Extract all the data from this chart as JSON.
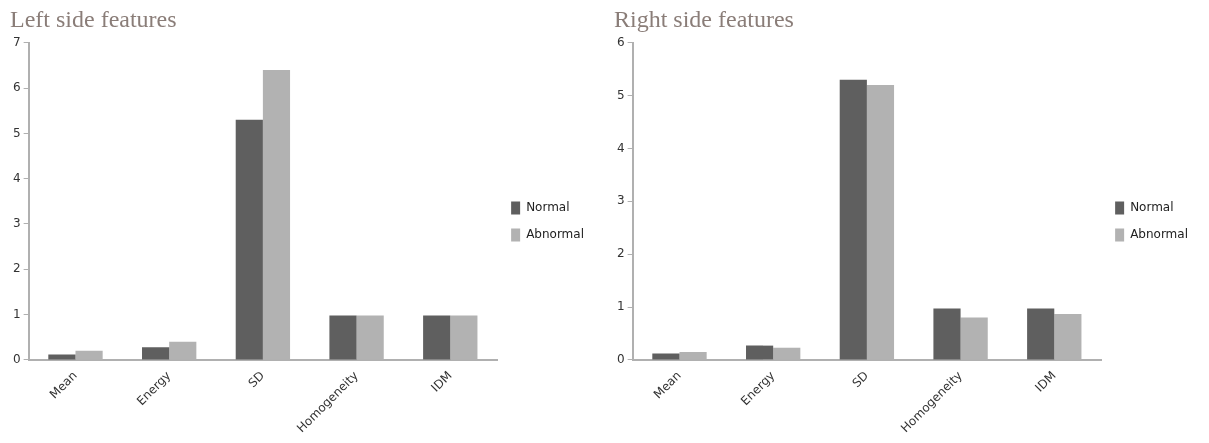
{
  "chart_data": [
    {
      "type": "bar",
      "title": "Left side features",
      "categories": [
        "Mean",
        "Energy",
        "SD",
        "Homogeneity",
        "IDM"
      ],
      "series": [
        {
          "name": "Normal",
          "color": "#5f5f5f",
          "values": [
            0.12,
            0.28,
            5.3,
            0.98,
            0.98
          ]
        },
        {
          "name": "Abnormal",
          "color": "#b2b2b2",
          "values": [
            0.2,
            0.4,
            6.4,
            0.98,
            0.98
          ]
        }
      ],
      "ylim": [
        0,
        7
      ],
      "yticks": [
        0,
        1,
        2,
        3,
        4,
        5,
        6,
        7
      ],
      "grid": false,
      "legend": "right"
    },
    {
      "type": "bar",
      "title": "Right side features",
      "categories": [
        "Mean",
        "Energy",
        "SD",
        "Homogeneity",
        "IDM"
      ],
      "series": [
        {
          "name": "Normal",
          "color": "#5f5f5f",
          "values": [
            0.12,
            0.27,
            5.3,
            0.97,
            0.97
          ]
        },
        {
          "name": "Abnormal",
          "color": "#b2b2b2",
          "values": [
            0.15,
            0.23,
            5.2,
            0.8,
            0.87
          ]
        }
      ],
      "ylim": [
        0,
        6
      ],
      "yticks": [
        0,
        1,
        2,
        3,
        4,
        5,
        6
      ],
      "grid": false,
      "legend": "right"
    }
  ]
}
